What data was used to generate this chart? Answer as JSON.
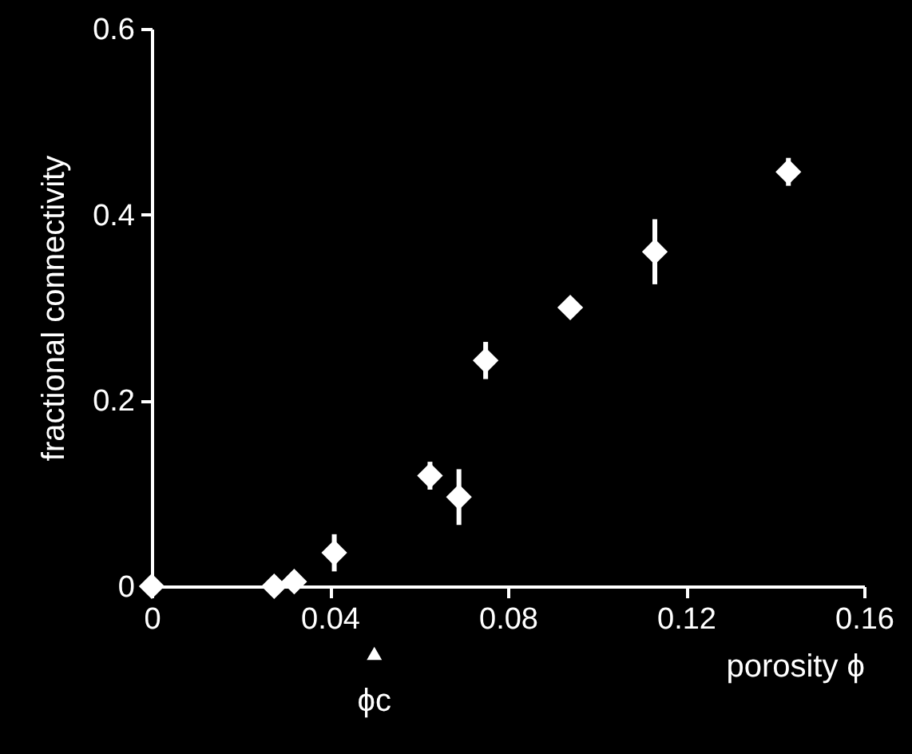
{
  "chart_data": {
    "type": "scatter",
    "xlabel": "porosity  ϕ",
    "ylabel": "fractional connectivity",
    "x": [
      0.0,
      0.0275,
      0.032,
      0.041,
      0.0625,
      0.069,
      0.075,
      0.094,
      0.113,
      0.143
    ],
    "series": [
      {
        "color": "#ffffff",
        "values": [
          0.0,
          0.0,
          0.005,
          0.036,
          0.119,
          0.096,
          0.243,
          0.3,
          0.36,
          0.446
        ],
        "errors": [
          0.01,
          0.01,
          0.01,
          0.02,
          0.015,
          0.03,
          0.02,
          0.01,
          0.035,
          0.015
        ]
      }
    ],
    "xlim": [
      0,
      0.16
    ],
    "xticks": [
      0,
      0.04,
      0.08,
      0.12,
      0.16
    ],
    "ylim": [
      0,
      0.6
    ],
    "yticks": [
      0,
      0.2,
      0.4,
      0.6
    ],
    "marker": "diamond",
    "grid": false,
    "annotations": [
      "ϕc"
    ]
  }
}
